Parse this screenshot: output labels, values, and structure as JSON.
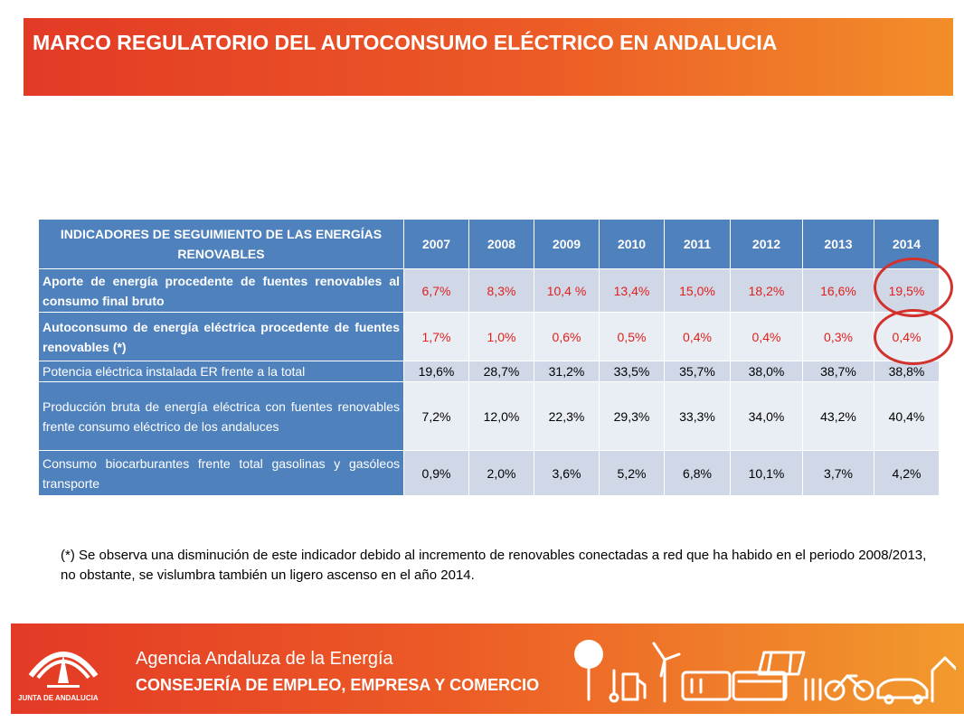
{
  "header": {
    "title": "MARCO REGULATORIO DEL AUTOCONSUMO ELÉCTRICO EN ANDALUCIA"
  },
  "table": {
    "corner_header": "INDICADORES DE SEGUIMIENTO DE LAS ENERGÍAS RENOVABLES",
    "years": [
      "2007",
      "2008",
      "2009",
      "2010",
      "2011",
      "2012",
      "2013",
      "2014"
    ],
    "rows": [
      {
        "label": "Aporte de energía procedente de fuentes renovables al consumo final bruto",
        "values": [
          "6,7%",
          "8,3%",
          "10,4 %",
          "13,4%",
          "15,0%",
          "18,2%",
          "16,6%",
          "19,5%"
        ]
      },
      {
        "label": "Autoconsumo de energía eléctrica procedente de fuentes renovables (*)",
        "values": [
          "1,7%",
          "1,0%",
          "0,6%",
          "0,5%",
          "0,4%",
          "0,4%",
          "0,3%",
          "0,4%"
        ]
      },
      {
        "label": "Potencia eléctrica instalada ER frente a la total",
        "values": [
          "19,6%",
          "28,7%",
          "31,2%",
          "33,5%",
          "35,7%",
          "38,0%",
          "38,7%",
          "38,8%"
        ]
      },
      {
        "label": "Producción bruta de energía eléctrica con fuentes renovables frente consumo eléctrico de los andaluces",
        "values": [
          "7,2%",
          "12,0%",
          "22,3%",
          "29,3%",
          "33,3%",
          "34,0%",
          "43,2%",
          "40,4%"
        ]
      },
      {
        "label": "Consumo biocarburantes frente total gasolinas y gasóleos transporte",
        "values": [
          "0,9%",
          "2,0%",
          "3,6%",
          "5,2%",
          "6,8%",
          "10,1%",
          "3,7%",
          "4,2%"
        ]
      }
    ]
  },
  "footnote": "(*) Se observa una disminución de este indicador debido al incremento de renovables conectadas a red que ha habido en el periodo 2008/2013, no obstante, se vislumbra también un ligero ascenso en el año 2014.",
  "footer": {
    "logo_text": "JUNTA DE ANDALUCIA",
    "org": "Agencia Andaluza de la Energía",
    "dept": "CONSEJERÍA DE EMPLEO, EMPRESA Y COMERCIO",
    "icons": [
      "tree-icon",
      "thermometer-icon",
      "fuel-pump-icon",
      "wind-turbine-icon",
      "train-icon",
      "bus-icon",
      "solar-panel-icon",
      "wheat-icon",
      "bicycle-icon",
      "car-icon",
      "house-icon"
    ]
  },
  "colors": {
    "header_bg": "#e33a26",
    "table_header": "#4f81bd",
    "highlight_red": "#e0201b"
  }
}
